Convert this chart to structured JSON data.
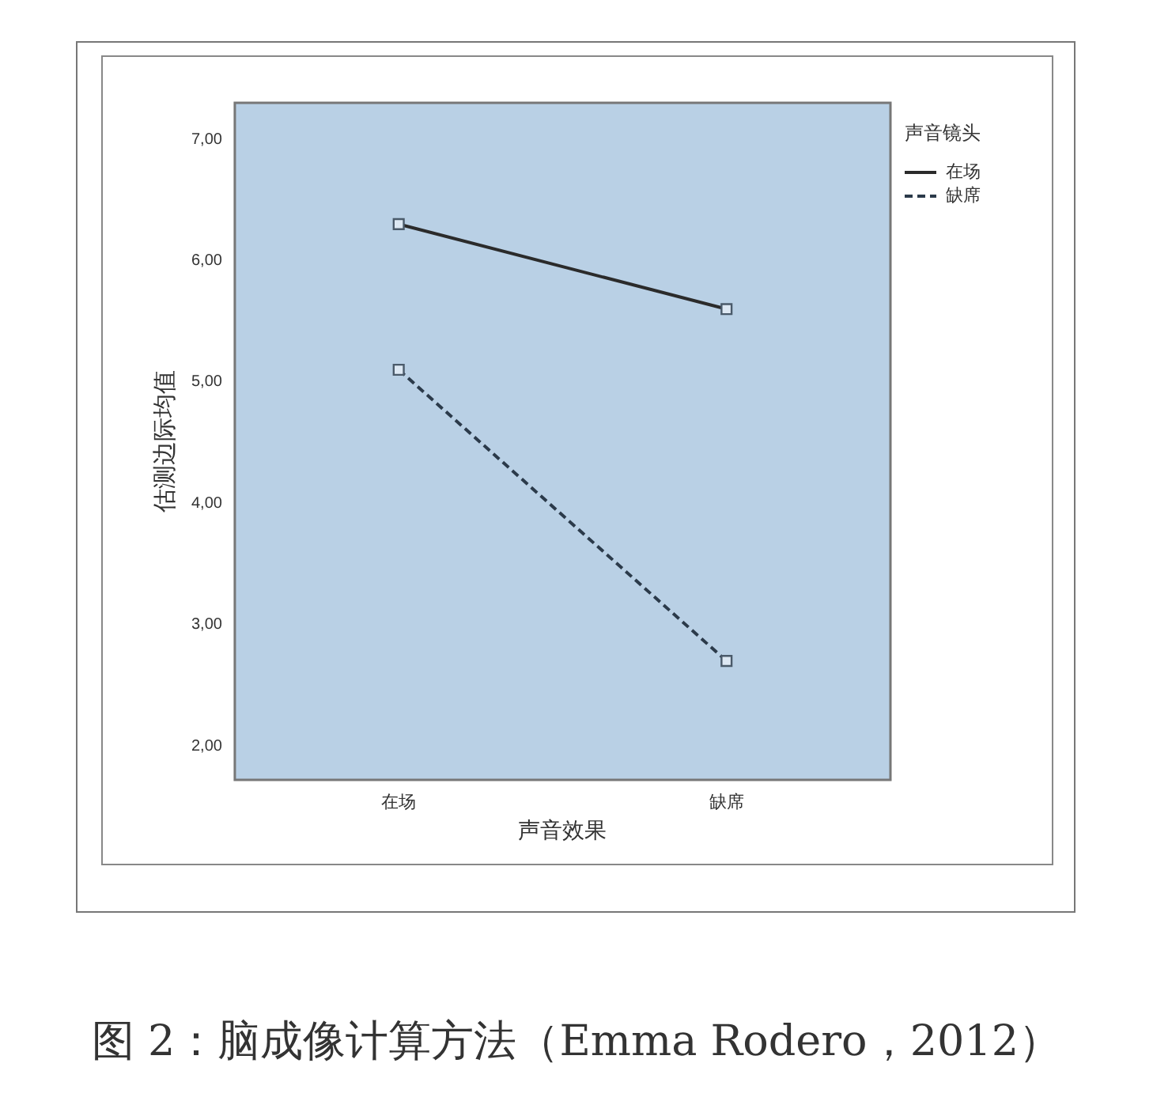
{
  "chart_data": {
    "type": "line",
    "categories": [
      "在场",
      "缺席"
    ],
    "xlabel": "声音效果",
    "ylabel": "估测边际均值",
    "legend_title": "声音镜头",
    "series": [
      {
        "name": "在场",
        "color": "#2b2b2b",
        "values": [
          6.3,
          5.6
        ],
        "line_style": "solid"
      },
      {
        "name": "缺席",
        "color": "#2b3a4a",
        "values": [
          5.1,
          2.7
        ],
        "line_style": "dashed"
      }
    ],
    "ylim": [
      1.72,
      7.3
    ],
    "yticks": [
      {
        "value": 2,
        "label": "2,00"
      },
      {
        "value": 3,
        "label": "3,00"
      },
      {
        "value": 4,
        "label": "4,00"
      },
      {
        "value": 5,
        "label": "5,00"
      },
      {
        "value": 6,
        "label": "6,00"
      },
      {
        "value": 7,
        "label": "7,00"
      }
    ],
    "marker": "square",
    "grid": false,
    "legend": "top right",
    "annotations": [
      "图 2：脑成像计算方法（Emma Rodero，2012）"
    ]
  }
}
